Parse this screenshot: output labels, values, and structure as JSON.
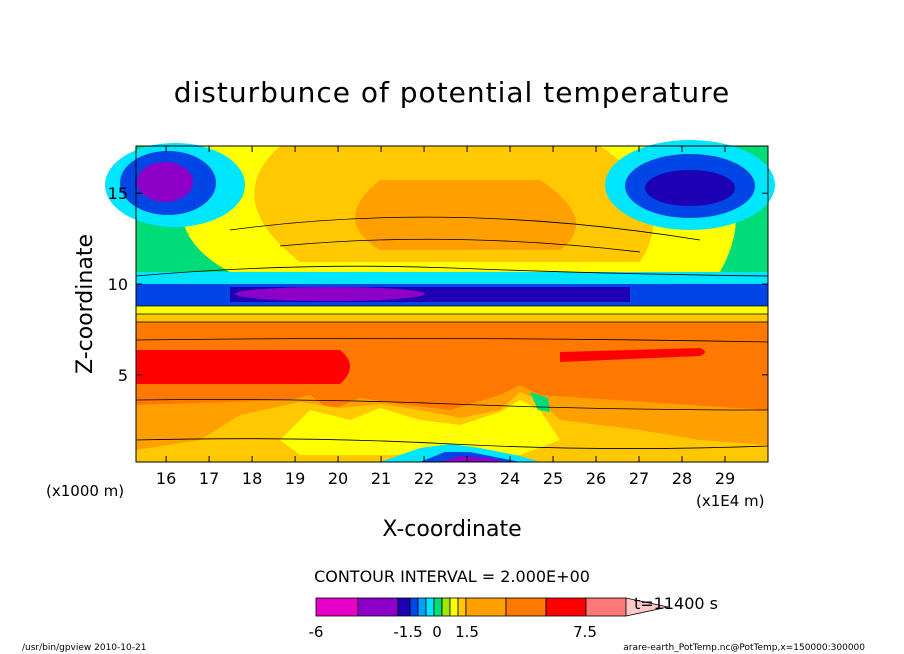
{
  "chart_data": {
    "type": "heatmap",
    "title": "disturbunce of potential temperature",
    "xlabel": "X-coordinate",
    "ylabel": "Z-coordinate",
    "x_unit_left": "(x1000 m)",
    "x_unit_right": "(x1E4 m)",
    "x_range": [
      15.3,
      30.0
    ],
    "y_range": [
      0.2,
      17.6
    ],
    "x_ticks": [
      "16",
      "17",
      "18",
      "19",
      "20",
      "21",
      "22",
      "23",
      "24",
      "25",
      "26",
      "27",
      "28",
      "29"
    ],
    "y_ticks": [
      "5",
      "10",
      "15"
    ],
    "contour_interval_text": "CONTOUR INTERVAL = 2.000E+00",
    "time_text": "t=11400 s",
    "colorbar_labels": [
      "-6",
      "-1.5",
      "0",
      "1.5",
      "7.5"
    ],
    "colorbar_colors": [
      "#e600c8",
      "#8c00c8",
      "#1e00b4",
      "#0046e6",
      "#00a0ff",
      "#00e6ff",
      "#00dc78",
      "#a0e600",
      "#ffff00",
      "#ffc800",
      "#ffa000",
      "#ff7800",
      "#ff0000",
      "#ff7878",
      "#ffc8c8"
    ],
    "levels": [
      {
        "z": 16.2,
        "value": -5,
        "color": "#8c00c8"
      },
      {
        "z": 15.5,
        "value": -3,
        "color": "#0046e6"
      },
      {
        "z": 13.8,
        "value": 1,
        "color": "#ffff00"
      },
      {
        "z": 12.5,
        "value": 3,
        "color": "#ffa000"
      },
      {
        "z": 11.0,
        "value": 0,
        "color": "#00dc78"
      },
      {
        "z": 9.7,
        "value": -4,
        "color": "#1e00b4"
      },
      {
        "z": 8.3,
        "value": 4,
        "color": "#ff7800"
      },
      {
        "z": 6.2,
        "value": 6,
        "color": "#ff0000"
      },
      {
        "z": 3.5,
        "value": 4,
        "color": "#ff7800"
      },
      {
        "z": 1.5,
        "value": 2,
        "color": "#ffc800"
      },
      {
        "z": 0.4,
        "value": -4,
        "color": "#1e00b4"
      }
    ]
  },
  "footer": {
    "left": "/usr/bin/gpview   2010-10-21",
    "right": "arare-earth_PotTemp.nc@PotTemp,x=150000:300000"
  }
}
